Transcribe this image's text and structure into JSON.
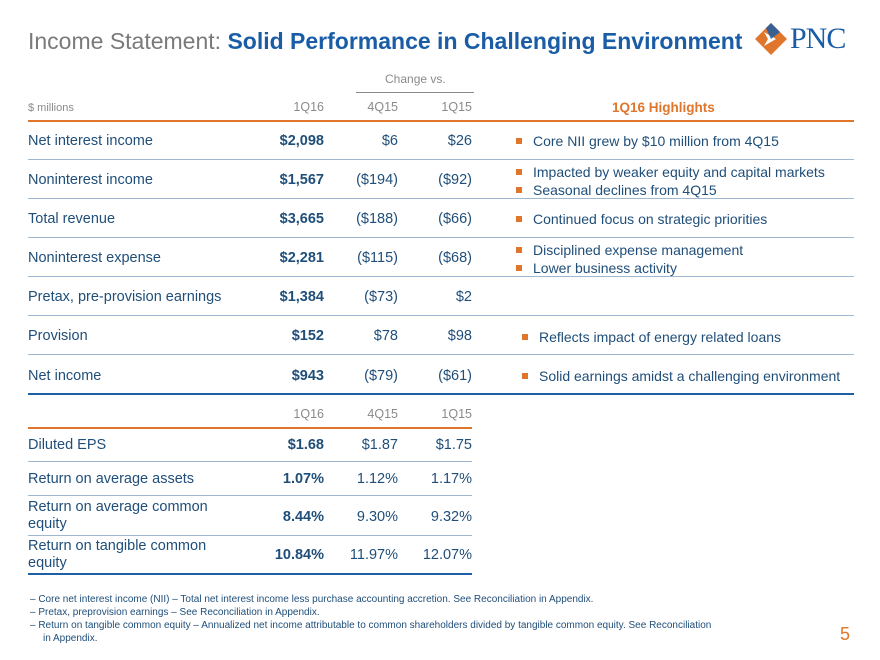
{
  "header": {
    "title_light": "Income Statement: ",
    "title_bold": "Solid Performance in Challenging Environment",
    "logo_text": "PNC"
  },
  "table1": {
    "change_label": "Change vs.",
    "units_label": "$ millions",
    "columns": [
      "1Q16",
      "4Q15",
      "1Q15"
    ],
    "rows": [
      {
        "label": "Net interest income",
        "q1": "$2,098",
        "q4": "$6",
        "y": "$26"
      },
      {
        "label": "Noninterest income",
        "q1": "$1,567",
        "q4": "($194)",
        "y": "($92)"
      },
      {
        "label": "Total revenue",
        "q1": "$3,665",
        "q4": "($188)",
        "y": "($66)"
      },
      {
        "label": "Noninterest expense",
        "q1": "$2,281",
        "q4": "($115)",
        "y": "($68)"
      },
      {
        "label": "Pretax, pre-provision earnings",
        "q1": "$1,384",
        "q4": "($73)",
        "y": "$2"
      },
      {
        "label": "Provision",
        "q1": "$152",
        "q4": "$78",
        "y": "$98"
      },
      {
        "label": "Net income",
        "q1": "$943",
        "q4": "($79)",
        "y": "($61)"
      }
    ]
  },
  "highlights": {
    "title": "1Q16 Highlights",
    "items": [
      "Core NII grew by $10 million from 4Q15",
      "Impacted by weaker equity and capital markets",
      "Seasonal declines from 4Q15",
      "Continued focus on strategic priorities",
      "Disciplined expense management",
      "Lower business activity",
      "Reflects impact of energy related loans",
      "Solid earnings amidst a challenging environment"
    ]
  },
  "table2": {
    "columns": [
      "1Q16",
      "4Q15",
      "1Q15"
    ],
    "rows": [
      {
        "label": "Diluted EPS",
        "q1": "$1.68",
        "q4": "$1.87",
        "y": "$1.75"
      },
      {
        "label": "Return on average assets",
        "q1": "1.07%",
        "q4": "1.12%",
        "y": "1.17%"
      },
      {
        "label_1": "Return on average common",
        "label_2": "equity",
        "q1": "8.44%",
        "q4": "9.30%",
        "y": "9.32%"
      },
      {
        "label_1": "Return on tangible common",
        "label_2": "equity",
        "q1": "10.84%",
        "q4": "11.97%",
        "y": "12.07%"
      }
    ]
  },
  "footnotes": [
    "– Core net interest income (NII) – Total net interest income less purchase accounting accretion. See Reconciliation in Appendix.",
    "– Pretax, preprovision earnings – See Reconciliation in Appendix.",
    "– Return on tangible common equity – Annualized net income attributable to common shareholders divided by tangible common equity.  See Reconciliation",
    "in Appendix."
  ],
  "page_number": "5",
  "colors": {
    "accent_orange": "#e0762b",
    "brand_blue": "#1a5da6",
    "text_blue": "#1f4e79"
  }
}
